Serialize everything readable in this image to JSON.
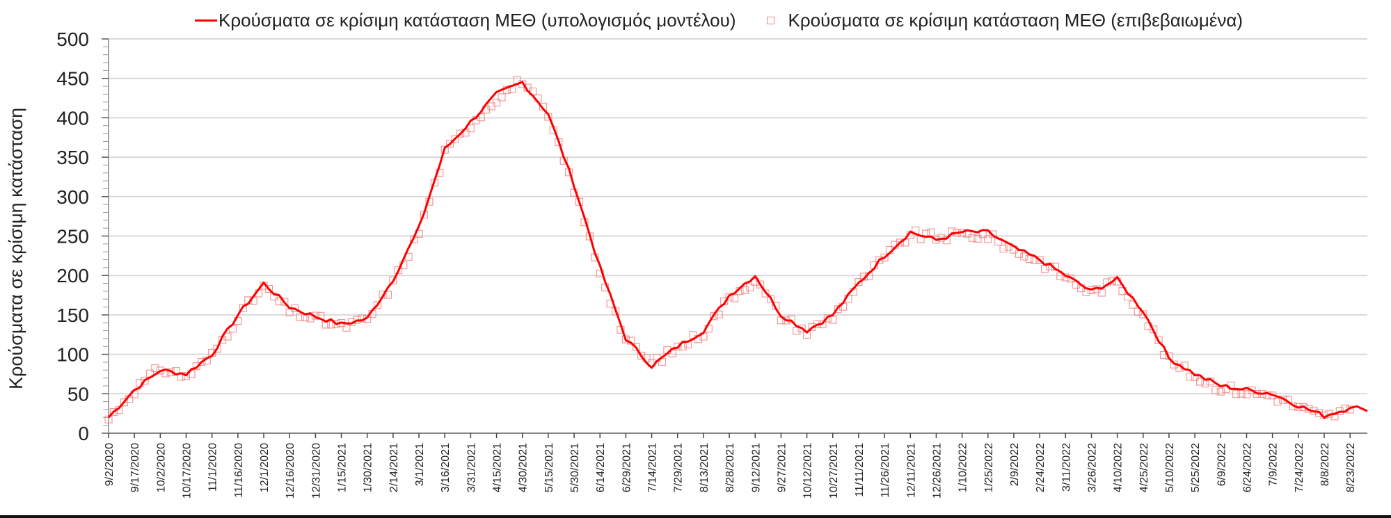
{
  "legend": {
    "model_label": "Κρούσματα σε κρίσιμη κατάσταση ΜΕΘ (υπολογισμός μοντέλου)",
    "confirmed_label": "Κρούσματα σε κρίσιμη κατάσταση ΜΕΘ (επιβεβαιωμένα)"
  },
  "colors": {
    "model_line": "#ff0000",
    "confirmed_marker": "#f08080",
    "grid": "#d9d9d9",
    "axis": "#888888",
    "text": "#222222"
  },
  "chart_data": {
    "type": "line",
    "title": "",
    "xlabel": "",
    "ylabel": "Κρούσματα σε κρίσιμη κατάσταση",
    "ylim": [
      0,
      500
    ],
    "yticks": [
      0,
      50,
      100,
      150,
      200,
      250,
      300,
      350,
      400,
      450,
      500
    ],
    "grid": true,
    "legend_position": "top",
    "categories": [
      "9/2/2020",
      "9/17/2020",
      "10/2/2020",
      "10/17/2020",
      "11/1/2020",
      "11/16/2020",
      "12/1/2020",
      "12/16/2020",
      "12/31/2020",
      "1/15/2021",
      "1/30/2021",
      "2/14/2021",
      "3/1/2021",
      "3/16/2021",
      "3/31/2021",
      "4/15/2021",
      "4/30/2021",
      "5/15/2021",
      "5/30/2021",
      "6/14/2021",
      "6/29/2021",
      "7/14/2021",
      "7/29/2021",
      "8/13/2021",
      "8/28/2021",
      "9/12/2021",
      "9/27/2021",
      "10/12/2021",
      "10/27/2021",
      "11/11/2021",
      "11/26/2021",
      "12/11/2021",
      "12/26/2021",
      "1/10/2022",
      "1/25/2022",
      "2/9/2022",
      "2/24/2022",
      "3/11/2022",
      "3/26/2022",
      "4/10/2022",
      "4/25/2022",
      "5/10/2022",
      "5/25/2022",
      "6/9/2022",
      "6/24/2022",
      "7/9/2022",
      "7/24/2022",
      "8/8/2022",
      "8/23/2022"
    ],
    "series": [
      {
        "name": "Κρούσματα σε κρίσιμη κατάσταση ΜΕΘ (υπολογισμός μοντέλου)",
        "style": "line",
        "values": [
          20,
          55,
          80,
          75,
          100,
          150,
          190,
          160,
          148,
          138,
          145,
          195,
          260,
          360,
          395,
          430,
          445,
          405,
          315,
          210,
          120,
          85,
          110,
          130,
          175,
          200,
          150,
          130,
          150,
          190,
          225,
          255,
          245,
          255,
          255,
          235,
          220,
          200,
          180,
          195,
          155,
          95,
          75,
          60,
          55,
          50,
          35,
          22,
          32
        ]
      },
      {
        "name": "Κρούσματα σε κρίσιμη κατάσταση ΜΕΘ (επιβεβαιωμένα)",
        "style": "markers",
        "marker": "open-square",
        "values": [
          18,
          55,
          82,
          72,
          98,
          148,
          185,
          155,
          145,
          135,
          143,
          190,
          255,
          355,
          392,
          425,
          448,
          400,
          310,
          205,
          118,
          88,
          108,
          128,
          172,
          195,
          148,
          128,
          148,
          188,
          222,
          252,
          248,
          252,
          250,
          232,
          218,
          198,
          178,
          192,
          152,
          92,
          72,
          58,
          52,
          48,
          33,
          20,
          30
        ]
      }
    ]
  }
}
